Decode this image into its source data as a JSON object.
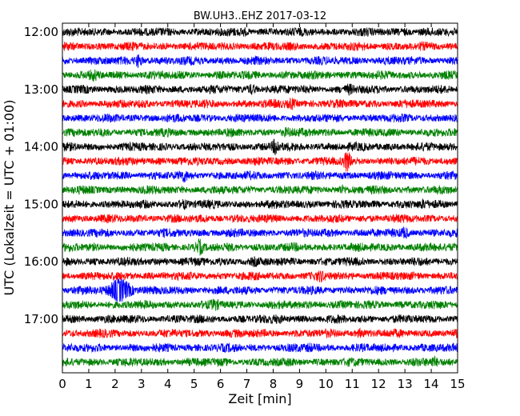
{
  "chart_data": {
    "type": "line",
    "subtype": "dayplot",
    "title": "BW.UH3..EHZ 2017-03-12",
    "xlabel": "Zeit  [min]",
    "ylabel": "UTC (Lokalzeit = UTC + 01:00)",
    "xlim": [
      0,
      15
    ],
    "x_ticks": [
      0,
      1,
      2,
      3,
      4,
      5,
      6,
      7,
      8,
      9,
      10,
      11,
      12,
      13,
      14,
      15
    ],
    "x_tick_labels": [
      "0",
      "1",
      "2",
      "3",
      "4",
      "5",
      "6",
      "7",
      "8",
      "9",
      "10",
      "11",
      "12",
      "13",
      "14",
      "15"
    ],
    "y_tick_labels": [
      "12:00",
      "13:00",
      "14:00",
      "15:00",
      "16:00",
      "17:00"
    ],
    "y_tick_trace_index": [
      0,
      4,
      8,
      12,
      16,
      20
    ],
    "minutes_per_trace": 15,
    "start_time": "12:00",
    "trace_count": 24,
    "color_cycle": [
      "#000000",
      "#ff0000",
      "#0000ff",
      "#008000"
    ],
    "grid": false,
    "legend": "none",
    "events": [
      {
        "trace_start": "12:00",
        "minute": 6.9,
        "amplitude": 1.5
      },
      {
        "trace_start": "12:00",
        "minute": 13.0,
        "amplitude": 1.4
      },
      {
        "trace_start": "12:30",
        "minute": 2.9,
        "amplitude": 2.2
      },
      {
        "trace_start": "12:45",
        "minute": 1.2,
        "amplitude": 1.6
      },
      {
        "trace_start": "13:00",
        "minute": 7.2,
        "amplitude": 1.8
      },
      {
        "trace_start": "13:00",
        "minute": 10.9,
        "amplitude": 1.6
      },
      {
        "trace_start": "13:15",
        "minute": 8.7,
        "amplitude": 2.0
      },
      {
        "trace_start": "13:45",
        "minute": 8.5,
        "amplitude": 1.6
      },
      {
        "trace_start": "14:00",
        "minute": 8.1,
        "amplitude": 2.6
      },
      {
        "trace_start": "14:15",
        "minute": 10.8,
        "amplitude": 3.0
      },
      {
        "trace_start": "14:30",
        "minute": 4.6,
        "amplitude": 1.8
      },
      {
        "trace_start": "14:45",
        "minute": 10.6,
        "amplitude": 1.5
      },
      {
        "trace_start": "15:00",
        "minute": 4.6,
        "amplitude": 1.6
      },
      {
        "trace_start": "15:00",
        "minute": 13.7,
        "amplitude": 1.5
      },
      {
        "trace_start": "15:30",
        "minute": 13.0,
        "amplitude": 2.0
      },
      {
        "trace_start": "15:45",
        "minute": 5.2,
        "amplitude": 2.4
      },
      {
        "trace_start": "16:00",
        "minute": 7.3,
        "amplitude": 1.4
      },
      {
        "trace_start": "16:15",
        "minute": 9.8,
        "amplitude": 1.6
      },
      {
        "trace_start": "16:30",
        "minute": 2.2,
        "amplitude": 3.6
      },
      {
        "trace_start": "16:45",
        "minute": 5.8,
        "amplitude": 1.6
      },
      {
        "trace_start": "17:00",
        "minute": 8.2,
        "amplitude": 1.4
      },
      {
        "trace_start": "17:15",
        "minute": 11.3,
        "amplitude": 1.5
      },
      {
        "trace_start": "17:30",
        "minute": 9.4,
        "amplitude": 1.5
      },
      {
        "trace_start": "17:45",
        "minute": 14.1,
        "amplitude": 1.8
      }
    ]
  }
}
